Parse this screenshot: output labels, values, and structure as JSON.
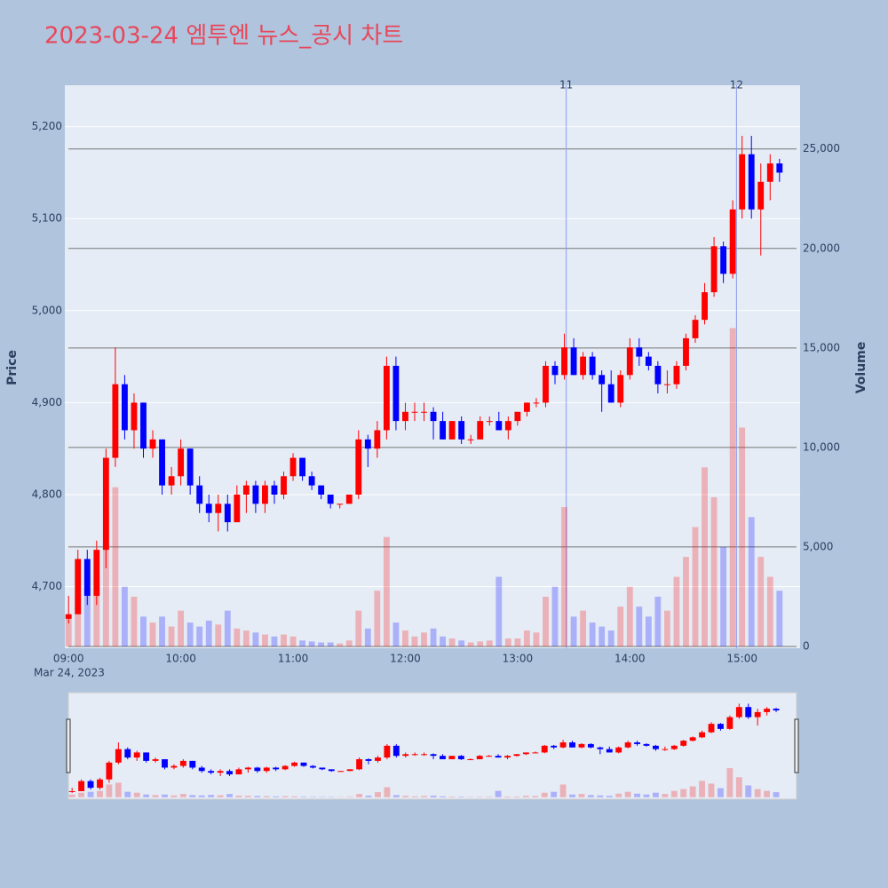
{
  "chart_data": {
    "type": "candlestick",
    "title": "2023-03-24 엠투엔 뉴스_공시 차트",
    "ylabel": "Price",
    "y2label": "Volume",
    "x_date_label": "Mar 24, 2023",
    "increasing_color": "#ff0000",
    "decreasing_color": "#0000ff",
    "x": [
      "09:00",
      "09:05",
      "09:10",
      "09:15",
      "09:20",
      "09:25",
      "09:30",
      "09:35",
      "09:40",
      "09:45",
      "09:50",
      "09:55",
      "10:00",
      "10:05",
      "10:10",
      "10:15",
      "10:20",
      "10:25",
      "10:30",
      "10:35",
      "10:40",
      "10:45",
      "10:50",
      "10:55",
      "11:00",
      "11:05",
      "11:10",
      "11:15",
      "11:20",
      "11:25",
      "11:30",
      "11:35",
      "11:40",
      "11:45",
      "11:50",
      "11:55",
      "12:00",
      "12:05",
      "12:10",
      "12:15",
      "12:20",
      "12:25",
      "12:30",
      "12:35",
      "12:40",
      "12:45",
      "12:50",
      "12:55",
      "13:00",
      "13:05",
      "13:10",
      "13:15",
      "13:20",
      "13:25",
      "13:30",
      "13:35",
      "13:40",
      "13:45",
      "13:50",
      "13:55",
      "14:00",
      "14:05",
      "14:10",
      "14:15",
      "14:20",
      "14:25",
      "14:30",
      "14:35",
      "14:40",
      "14:45",
      "14:50",
      "14:55",
      "15:00",
      "15:05",
      "15:10",
      "15:15",
      "15:20"
    ],
    "open": [
      4665,
      4670,
      4730,
      4690,
      4740,
      4840,
      4920,
      4870,
      4900,
      4850,
      4860,
      4810,
      4820,
      4850,
      4810,
      4790,
      4780,
      4790,
      4770,
      4800,
      4810,
      4790,
      4810,
      4800,
      4820,
      4840,
      4820,
      4810,
      4800,
      4790,
      4790,
      4800,
      4860,
      4850,
      4870,
      4940,
      4880,
      4890,
      4890,
      4890,
      4880,
      4860,
      4880,
      4860,
      4860,
      4880,
      4880,
      4870,
      4880,
      4890,
      4900,
      4900,
      4940,
      4930,
      4960,
      4930,
      4950,
      4930,
      4920,
      4900,
      4930,
      4960,
      4950,
      4940,
      4920,
      4920,
      4940,
      4970,
      4990,
      5020,
      5070,
      5040,
      5110,
      5170,
      5110,
      5140,
      5160
    ],
    "high": [
      4690,
      4740,
      4740,
      4750,
      4850,
      4960,
      4930,
      4910,
      4900,
      4870,
      4860,
      4830,
      4860,
      4850,
      4820,
      4800,
      4800,
      4800,
      4810,
      4815,
      4815,
      4815,
      4815,
      4825,
      4845,
      4840,
      4825,
      4810,
      4800,
      4790,
      4800,
      4870,
      4865,
      4880,
      4950,
      4950,
      4900,
      4900,
      4900,
      4895,
      4890,
      4880,
      4885,
      4865,
      4885,
      4885,
      4890,
      4885,
      4890,
      4900,
      4905,
      4945,
      4945,
      4975,
      4970,
      4955,
      4955,
      4935,
      4935,
      4935,
      4970,
      4970,
      4955,
      4945,
      4935,
      4945,
      4975,
      4995,
      5030,
      5080,
      5075,
      5120,
      5190,
      5190,
      5160,
      5170,
      5165
    ],
    "low": [
      4660,
      4670,
      4680,
      4680,
      4720,
      4830,
      4860,
      4850,
      4840,
      4840,
      4800,
      4800,
      4810,
      4800,
      4780,
      4770,
      4760,
      4760,
      4770,
      4780,
      4780,
      4780,
      4790,
      4795,
      4815,
      4815,
      4805,
      4795,
      4785,
      4785,
      4790,
      4795,
      4830,
      4840,
      4860,
      4870,
      4870,
      4880,
      4880,
      4860,
      4860,
      4860,
      4855,
      4855,
      4860,
      4875,
      4870,
      4860,
      4875,
      4885,
      4895,
      4895,
      4920,
      4925,
      4930,
      4925,
      4925,
      4890,
      4900,
      4895,
      4925,
      4940,
      4935,
      4910,
      4910,
      4915,
      4935,
      4965,
      4985,
      5015,
      5030,
      5035,
      5100,
      5100,
      5060,
      5120,
      5140
    ],
    "close": [
      4670,
      4730,
      4690,
      4740,
      4840,
      4920,
      4870,
      4900,
      4850,
      4860,
      4810,
      4820,
      4850,
      4810,
      4790,
      4780,
      4790,
      4770,
      4800,
      4810,
      4790,
      4810,
      4800,
      4820,
      4840,
      4820,
      4810,
      4800,
      4790,
      4790,
      4800,
      4860,
      4850,
      4870,
      4940,
      4880,
      4890,
      4890,
      4890,
      4880,
      4860,
      4880,
      4860,
      4860,
      4880,
      4880,
      4870,
      4880,
      4890,
      4900,
      4900,
      4940,
      4930,
      4960,
      4930,
      4950,
      4930,
      4920,
      4900,
      4930,
      4960,
      4950,
      4940,
      4920,
      4920,
      4940,
      4970,
      4990,
      5020,
      5070,
      5040,
      5110,
      5170,
      5110,
      5140,
      5160,
      5150
    ],
    "volume": [
      1500,
      2500,
      3000,
      3500,
      7000,
      8000,
      3000,
      2500,
      1500,
      1200,
      1500,
      1000,
      1800,
      1200,
      1000,
      1300,
      1100,
      1800,
      900,
      800,
      700,
      600,
      500,
      600,
      500,
      300,
      250,
      200,
      200,
      150,
      300,
      1800,
      900,
      2800,
      5500,
      1200,
      800,
      500,
      700,
      900,
      500,
      400,
      300,
      200,
      250,
      300,
      3500,
      400,
      400,
      800,
      700,
      2500,
      3000,
      7000,
      1500,
      1800,
      1200,
      1000,
      800,
      2000,
      3000,
      2000,
      1500,
      2500,
      1800,
      3500,
      4500,
      6000,
      9000,
      7500,
      5000,
      16000,
      11000,
      6500,
      4500,
      3500,
      2800
    ],
    "xlim": [
      "08:58",
      "15:31"
    ],
    "xticks": [
      "09:00",
      "10:00",
      "11:00",
      "12:00",
      "13:00",
      "14:00",
      "15:00"
    ],
    "ylim": [
      4633,
      5245
    ],
    "yticks": [
      {
        "value": 4700,
        "label": "4,700"
      },
      {
        "value": 4800,
        "label": "4,800"
      },
      {
        "value": 4900,
        "label": "4,900"
      },
      {
        "value": 5000,
        "label": "5,000"
      },
      {
        "value": 5100,
        "label": "5,100"
      },
      {
        "value": 5200,
        "label": "5,200"
      }
    ],
    "y2lim": [
      -90,
      28200
    ],
    "y2ticks": [
      0,
      {
        "value": 5000,
        "label": "5,000"
      },
      {
        "value": 10000,
        "label": "10,000"
      },
      {
        "value": 15000,
        "label": "15,000"
      },
      {
        "value": 20000,
        "label": "20,000"
      },
      {
        "value": 25000,
        "label": "25,000"
      }
    ],
    "annotations": [
      {
        "x": "13:26",
        "label": "11"
      },
      {
        "x": "14:57",
        "label": "12"
      }
    ],
    "rangeslider": true
  }
}
